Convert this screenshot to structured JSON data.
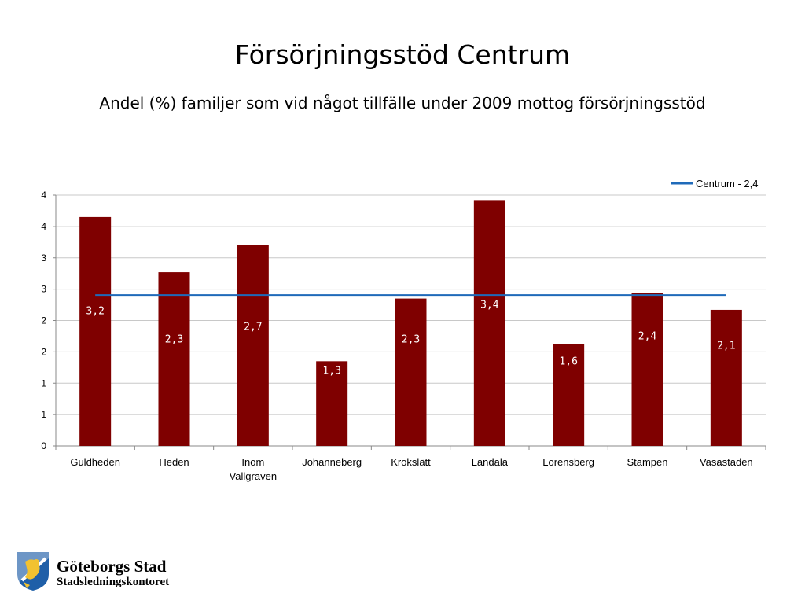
{
  "title": "Försörjningsstöd Centrum",
  "subtitle": "Andel (%) familjer som vid något tillfälle under 2009 mottog försörjningsstöd",
  "logo": {
    "name": "Göteborgs Stad",
    "department": "Stadsledningskontoret"
  },
  "colors": {
    "bar": "#7f0000",
    "line": "#1f6ab9",
    "grid": "#c8c8c8"
  },
  "chart_data": {
    "type": "bar",
    "categories": [
      [
        "Guldheden"
      ],
      [
        "Heden"
      ],
      [
        "Inom",
        "Vallgraven"
      ],
      [
        "Johanneberg"
      ],
      [
        "Krokslätt"
      ],
      [
        "Landala"
      ],
      [
        "Lorensberg"
      ],
      [
        "Stampen"
      ],
      [
        "Vasastaden"
      ]
    ],
    "values": [
      3.2,
      2.3,
      2.7,
      1.3,
      2.3,
      3.4,
      1.6,
      2.4,
      2.1
    ],
    "data_labels": [
      "3,2",
      "2,3",
      "2,7",
      "1,3",
      "2,3",
      "3,4",
      "1,6",
      "2,4",
      "2,1"
    ],
    "bar_tops": [
      3.65,
      2.77,
      3.2,
      1.35,
      2.35,
      3.92,
      1.63,
      2.44,
      2.17
    ],
    "y_ticks": [
      0,
      0.5,
      1,
      1.5,
      2,
      2.5,
      3,
      3.5,
      4
    ],
    "y_tick_labels": [
      "0",
      "1",
      "1",
      "2",
      "2",
      "3",
      "3",
      "4",
      "4"
    ],
    "ylim": [
      0,
      4
    ],
    "grid": true,
    "reference_line": {
      "name": "Centrum - 2,4",
      "value": 2.4
    },
    "legend": {
      "position": "top-right",
      "entries": [
        "Centrum - 2,4"
      ]
    }
  }
}
